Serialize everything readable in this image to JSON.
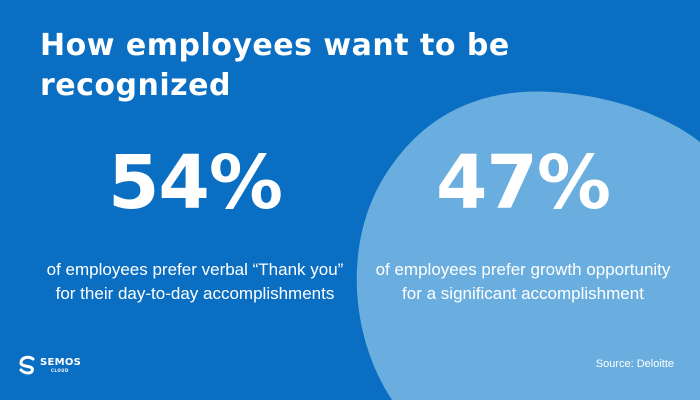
{
  "title": "How employees want to be recognized",
  "colors": {
    "background": "#0a6fc2",
    "accent_shape": "#6aaee0",
    "text": "#ffffff"
  },
  "stats": [
    {
      "value": "54%",
      "description": "of employees prefer verbal “Thank you” for their day-to-day accomplishments"
    },
    {
      "value": "47%",
      "description": "of employees prefer growth opportunity for a significant accomplishment"
    }
  ],
  "logo": {
    "name": "SEMOS",
    "subtitle": "CLOUD",
    "icon": "semos-cloud-logo-icon"
  },
  "source": "Source: Deloitte"
}
